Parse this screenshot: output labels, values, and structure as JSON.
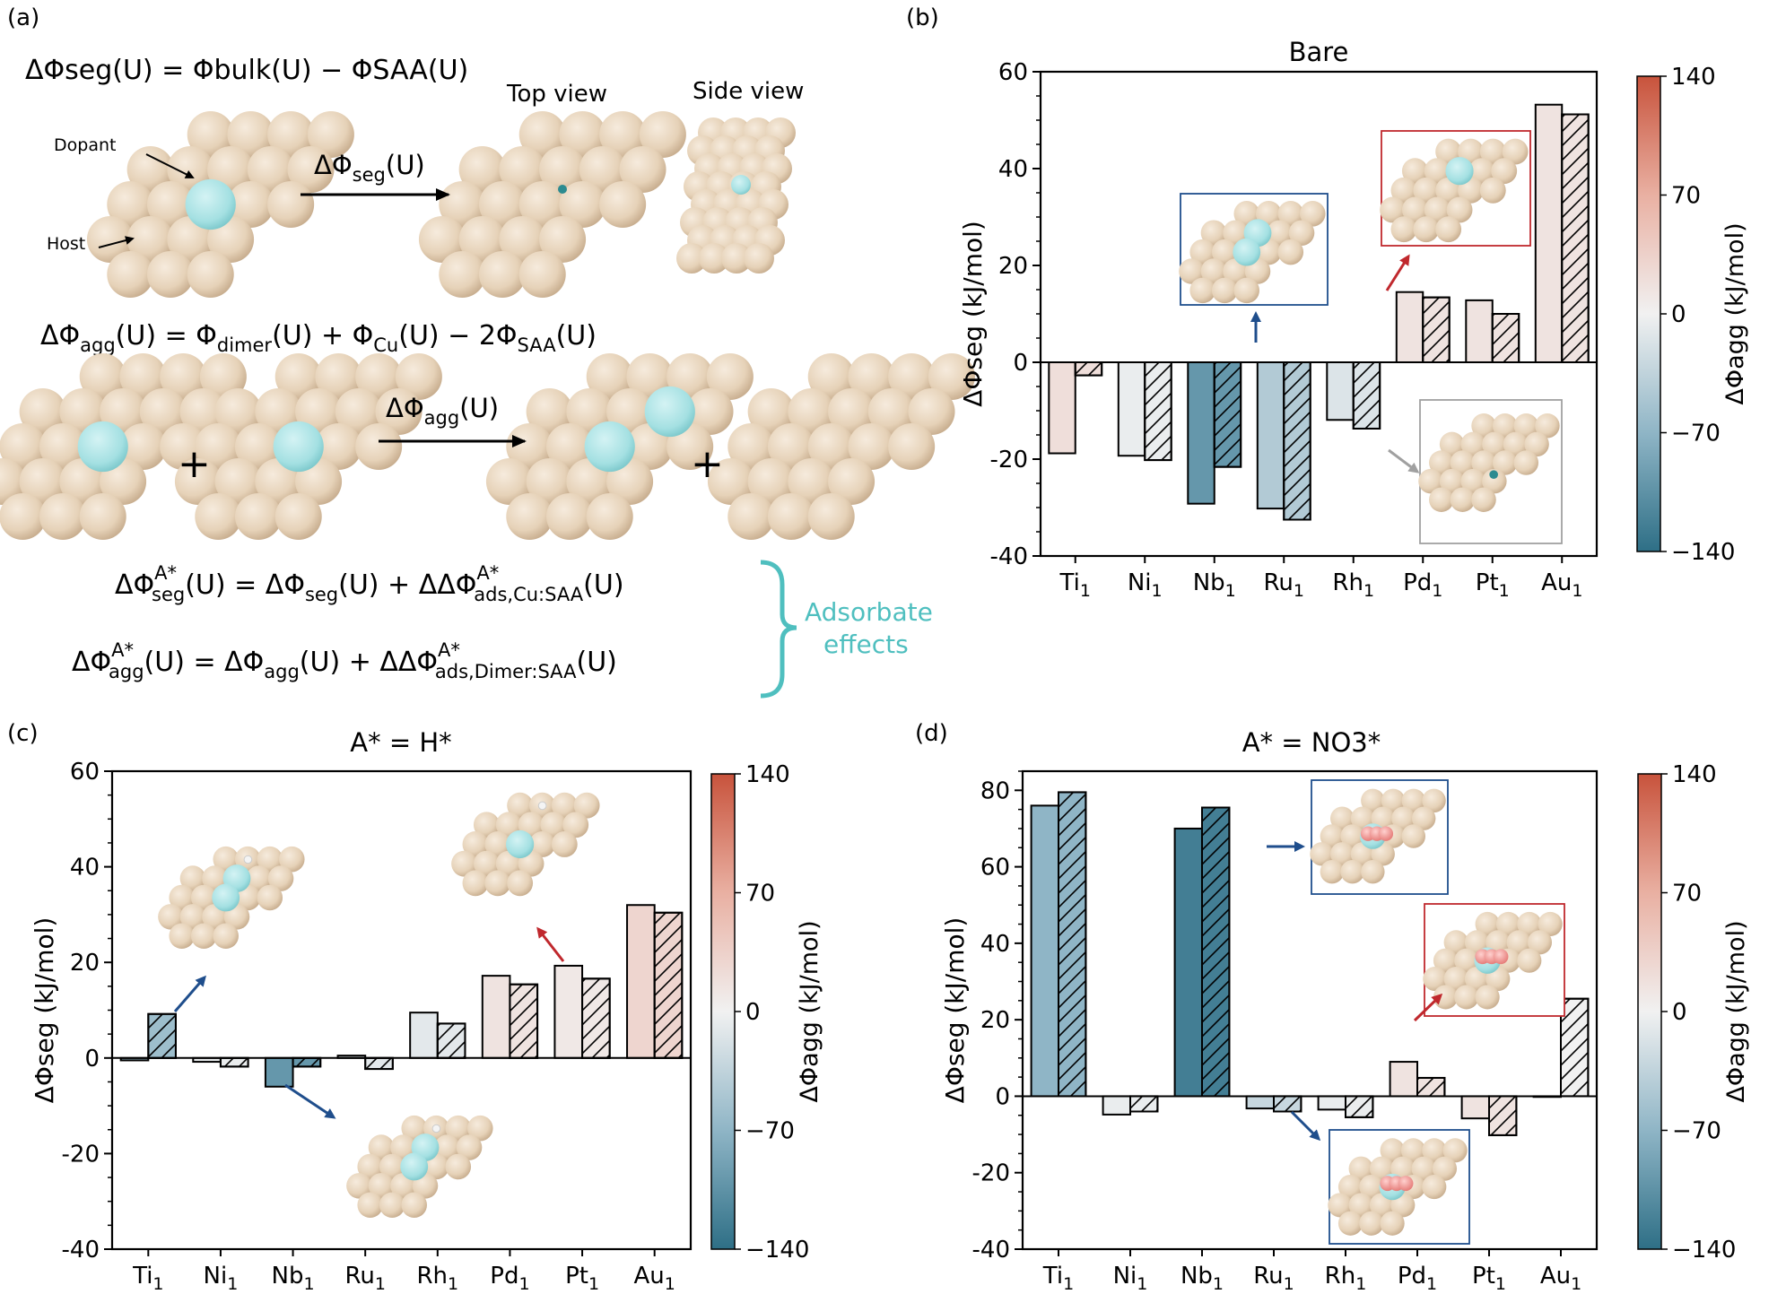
{
  "panels": {
    "a": "(a)",
    "b": "(b)",
    "c": "(c)",
    "d": "(d)"
  },
  "schematic": {
    "seg_eq": {
      "lhs_sym": "ΔΦseg(U) = ",
      "t1": "Φbulk(U) − ΦSAA(U)"
    },
    "top_view": "Top view",
    "side_view": "Side view",
    "dopant_label": "Dopant",
    "host_label": "Host",
    "seg_arrow_label": {
      "base": "ΔΦ",
      "sub": "seg",
      "tail": "(U)"
    },
    "agg_eq": {
      "p1": "ΔΦ",
      "s1": "agg",
      "p2": "(U) = Φ",
      "s2": "dimer",
      "p3": "(U) + Φ",
      "s3": "Cu",
      "p4": "(U) − 2Φ",
      "s4": "SAA",
      "p5": "(U)"
    },
    "plus": "+",
    "agg_arrow_label": {
      "base": "ΔΦ",
      "sub": "agg",
      "tail": "(U)"
    },
    "ads_eq1": {
      "a": "ΔΦ",
      "sup": "A*",
      "sub": "seg",
      "b": "(U) = ΔΦ",
      "sub2": "seg",
      "c": "(U) + ΔΔΦ",
      "sup2": "A*",
      "sub3": "ads,Cu:SAA",
      "d": "(U)"
    },
    "ads_eq2": {
      "a": "ΔΦ",
      "sup": "A*",
      "sub": "agg",
      "b": "(U) = ΔΦ",
      "sub2": "agg",
      "c": "(U) + ΔΔΦ",
      "sup2": "A*",
      "sub3": "ads,Dimer:SAA",
      "d": "(U)"
    },
    "adsorbate_effects": [
      "Adsorbate",
      "effects"
    ]
  },
  "colors": {
    "host": "#e8d5bd",
    "dopant": "#9fdcdf",
    "accent_teal": "#4fbfbf",
    "arrow_blue": "#1f4e8c",
    "arrow_red": "#c0282d",
    "arrow_gray": "#a0a0a0",
    "colormap": [
      "#2e6f86",
      "#8fb5c6",
      "#f1f1f1",
      "#e9b0a2",
      "#c8533c"
    ]
  },
  "chart_data": [
    {
      "id": "b",
      "type": "bar",
      "title": "Bare",
      "ylabel": "ΔΦseg (kJ/mol)",
      "cbar_label": "ΔΦagg (kJ/mol)",
      "cbar_ticks": [
        140,
        70,
        0,
        -70,
        -140
      ],
      "cbar_range": [
        -140,
        140
      ],
      "ylim": [
        -40,
        60
      ],
      "yticks": [
        -40,
        -20,
        0,
        20,
        40,
        60
      ],
      "categories": [
        "Ti1",
        "Ni1",
        "Nb1",
        "Ru1",
        "Rh1",
        "Pd1",
        "Pt1",
        "Au1"
      ],
      "series": [
        {
          "name": "plain",
          "values": [
            -18.8,
            -19.3,
            -29.2,
            -30.2,
            -11.9,
            14.5,
            12.8,
            53.2
          ]
        },
        {
          "name": "hatched",
          "values": [
            -2.7,
            -20.2,
            -21.6,
            -32.5,
            -13.7,
            13.4,
            10.0,
            51.2
          ]
        }
      ],
      "agg_colors": [
        20,
        -5,
        -100,
        -45,
        -15,
        15,
        15,
        15
      ]
    },
    {
      "id": "c",
      "type": "bar",
      "title": "A* = H*",
      "ylabel": "ΔΦseg (kJ/mol)",
      "cbar_label": "ΔΦagg (kJ/mol)",
      "cbar_ticks": [
        140,
        70,
        0,
        -70,
        -140
      ],
      "cbar_range": [
        -140,
        140
      ],
      "ylim": [
        -40,
        60
      ],
      "yticks": [
        -40,
        -20,
        0,
        20,
        40,
        60
      ],
      "categories": [
        "Ti1",
        "Ni1",
        "Nb1",
        "Ru1",
        "Rh1",
        "Pd1",
        "Pt1",
        "Au1"
      ],
      "series": [
        {
          "name": "plain",
          "values": [
            -0.5,
            -0.8,
            -6.0,
            0.5,
            9.5,
            17.2,
            19.3,
            32.0
          ]
        },
        {
          "name": "hatched",
          "values": [
            9.2,
            -1.8,
            -1.8,
            -2.3,
            7.2,
            15.4,
            16.6,
            30.4
          ]
        }
      ],
      "agg_colors": [
        -60,
        -5,
        -100,
        -10,
        -10,
        15,
        10,
        30
      ]
    },
    {
      "id": "d",
      "type": "bar",
      "title": "A* = NO3*",
      "ylabel": "ΔΦseg (kJ/mol)",
      "cbar_label": "ΔΦagg (kJ/mol)",
      "cbar_ticks": [
        140,
        70,
        0,
        -70,
        -140
      ],
      "cbar_range": [
        -140,
        140
      ],
      "ylim": [
        -40,
        85
      ],
      "yticks": [
        -40,
        -20,
        0,
        20,
        40,
        60,
        80
      ],
      "categories": [
        "Ti1",
        "Ni1",
        "Nb1",
        "Ru1",
        "Rh1",
        "Pd1",
        "Pt1",
        "Au1"
      ],
      "series": [
        {
          "name": "plain",
          "values": [
            76.0,
            -4.8,
            70.0,
            -3.2,
            -3.5,
            9.0,
            -5.8,
            0
          ]
        },
        {
          "name": "hatched",
          "values": [
            79.5,
            -4.0,
            75.5,
            -4.0,
            -5.5,
            4.8,
            -10.2,
            25.5
          ]
        }
      ],
      "agg_colors": [
        -70,
        -5,
        -125,
        -30,
        -5,
        15,
        15,
        0
      ]
    }
  ]
}
